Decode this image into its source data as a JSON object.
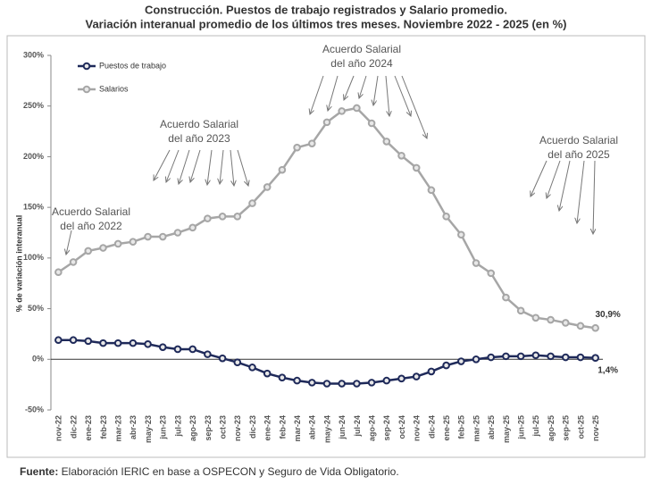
{
  "chart_data": {
    "type": "line",
    "title": [
      "Construcción. Puestos de trabajo registrados y Salario promedio.",
      "Variación interanual promedio de los últimos tres meses. Noviembre 2022 - 2025 (en %)"
    ],
    "y_label": "% de variación interanual",
    "categories": [
      "nov-22",
      "dic-22",
      "ene-23",
      "feb-23",
      "mar-23",
      "abr-23",
      "may-23",
      "jun-23",
      "jul-23",
      "ago-23",
      "sep-23",
      "oct-23",
      "nov-23",
      "dic-23",
      "ene-24",
      "feb-24",
      "mar-24",
      "abr-24",
      "may-24",
      "jun-24",
      "jul-24",
      "ago-24",
      "sep-24",
      "oct-24",
      "nov-24",
      "dic-24",
      "ene-25",
      "feb-25",
      "mar-25",
      "abr-25",
      "may-25",
      "jun-25",
      "jul-25",
      "ago-25",
      "sep-25",
      "oct-25",
      "nov-25"
    ],
    "series": [
      {
        "name": "Salarios",
        "color": "#a6a6a6",
        "values": [
          86,
          96,
          107,
          110,
          114,
          116,
          121,
          121,
          125,
          130,
          139,
          141,
          141,
          154,
          170,
          187,
          209,
          213,
          234,
          245,
          248,
          233,
          215,
          201,
          189,
          167,
          141,
          123,
          95,
          85,
          61,
          48,
          41,
          39,
          36,
          33,
          30.9
        ],
        "value_labels": [
          null,
          null,
          null,
          null,
          null,
          null,
          null,
          null,
          null,
          null,
          null,
          null,
          null,
          null,
          null,
          null,
          null,
          null,
          null,
          null,
          null,
          null,
          null,
          null,
          null,
          null,
          null,
          null,
          null,
          null,
          null,
          null,
          null,
          null,
          null,
          null,
          "30,9%"
        ]
      },
      {
        "name": "Puestos de trabajo",
        "color": "#1f2a5a",
        "values": [
          19,
          19,
          18,
          16,
          16,
          16,
          15,
          12,
          10,
          10,
          5,
          1,
          -3,
          -8,
          -14,
          -18,
          -21,
          -23,
          -24,
          -24,
          -24,
          -23,
          -21,
          -19,
          -17,
          -12,
          -6,
          -2,
          0,
          2,
          3,
          3,
          4,
          3,
          2,
          2,
          1.4
        ],
        "value_labels": [
          null,
          null,
          null,
          null,
          null,
          null,
          null,
          null,
          null,
          null,
          null,
          null,
          null,
          null,
          null,
          null,
          null,
          null,
          null,
          null,
          null,
          null,
          null,
          null,
          null,
          null,
          null,
          null,
          null,
          null,
          null,
          null,
          null,
          null,
          null,
          null,
          "1,4%"
        ]
      }
    ],
    "ylim": [
      -50,
      300
    ],
    "yticks": [
      {
        "value": -50,
        "label": "-50%"
      },
      {
        "value": 0,
        "label": "0%"
      },
      {
        "value": 50,
        "label": "50%"
      },
      {
        "value": 100,
        "label": "100%"
      },
      {
        "value": 150,
        "label": "150%"
      },
      {
        "value": 200,
        "label": "200%"
      },
      {
        "value": 250,
        "label": "250%"
      },
      {
        "value": 300,
        "label": "300%"
      }
    ],
    "grid": false,
    "annotations": [
      [
        "Acuerdo Salarial",
        "del año 2022"
      ],
      [
        "Acuerdo Salarial",
        "del año 2023"
      ],
      [
        "Acuerdo Salarial",
        "del año 2024"
      ],
      [
        "Acuerdo Salarial",
        "del año 2025"
      ]
    ],
    "source": [
      "Fuente:",
      " Elaboración IERIC en base a OSPECON y Seguro de Vida Obligatorio."
    ]
  }
}
